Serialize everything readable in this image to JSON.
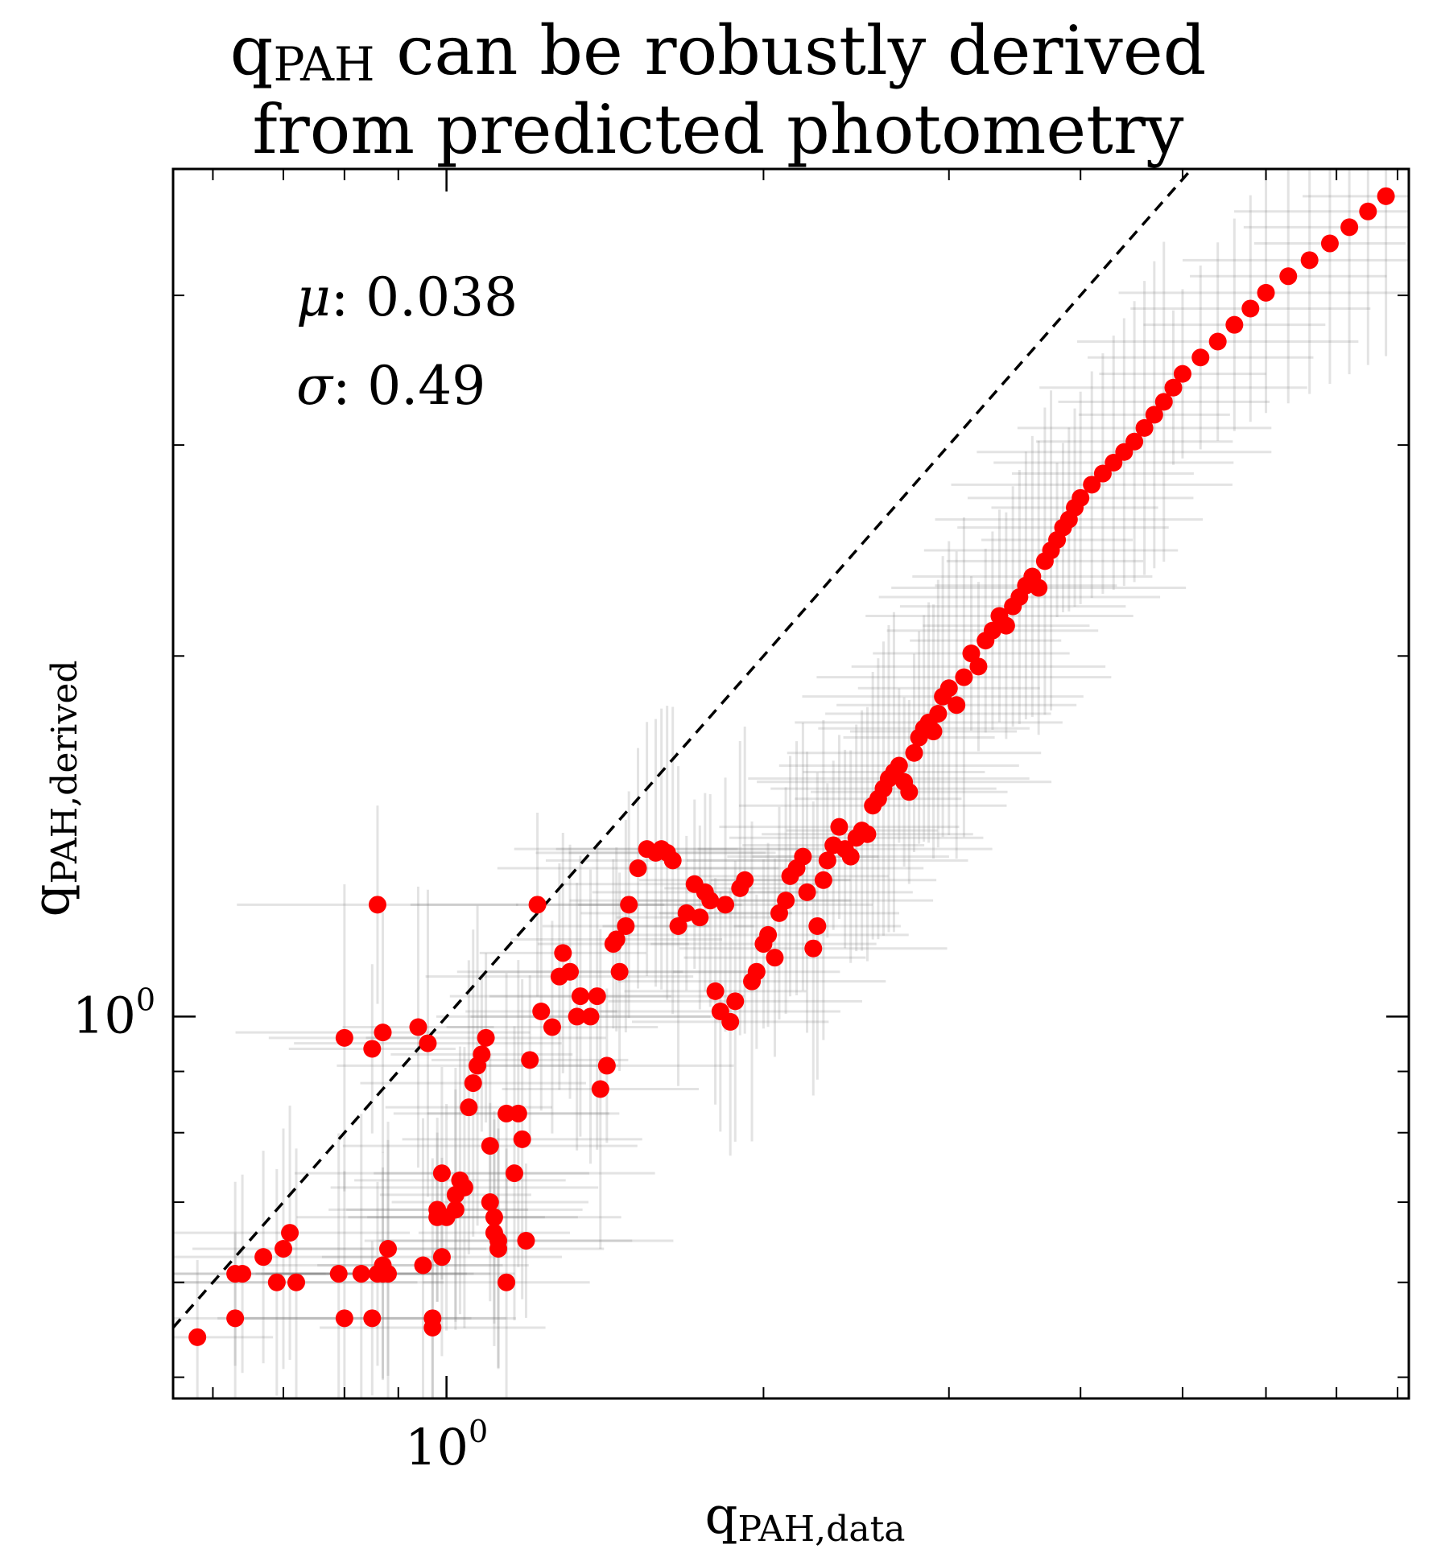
{
  "chart_data": {
    "type": "scatter",
    "title": [
      "q",
      "PAH",
      " can be robustly derived",
      "from predicted photometry"
    ],
    "xlabel": {
      "base": "q",
      "sub": "PAH,data"
    },
    "ylabel": {
      "base": "q",
      "sub": "PAH,derived"
    },
    "xscale": "log",
    "yscale": "log",
    "xlim": [
      0.55,
      8.2
    ],
    "ylim": [
      0.48,
      5.1
    ],
    "grid": false,
    "x_tick_labels": [
      {
        "value": 1.0,
        "base": "10",
        "exp": "0"
      }
    ],
    "y_tick_labels": [
      {
        "value": 1.0,
        "base": "10",
        "exp": "0"
      }
    ],
    "x_major_ticks": [
      1.0
    ],
    "x_minor_ticks": [
      0.6,
      0.7,
      0.8,
      0.9,
      2,
      3,
      4,
      5,
      6,
      7,
      8
    ],
    "y_major_ticks": [
      1.0
    ],
    "y_minor_ticks": [
      0.5,
      0.6,
      0.7,
      0.8,
      0.9,
      2,
      3,
      4
    ],
    "reference_line": {
      "style": "dashed",
      "color": "#000000",
      "slope": 1
    },
    "annotations": [
      {
        "symbol": "μ",
        "text": ": 0.038"
      },
      {
        "symbol": "σ",
        "text": ": 0.49"
      }
    ],
    "colors": {
      "points": "#ff0000",
      "errorbars": "#7f7f7f"
    },
    "series": [
      {
        "points": [
          [
            0.58,
            0.54
          ],
          [
            0.63,
            0.56
          ],
          [
            0.63,
            0.61
          ],
          [
            0.64,
            0.61
          ],
          [
            0.67,
            0.63
          ],
          [
            0.69,
            0.6
          ],
          [
            0.7,
            0.64
          ],
          [
            0.71,
            0.66
          ],
          [
            0.72,
            0.6
          ],
          [
            0.79,
            0.61
          ],
          [
            0.8,
            0.56
          ],
          [
            0.8,
            0.96
          ],
          [
            0.83,
            0.61
          ],
          [
            0.85,
            0.56
          ],
          [
            0.85,
            0.94
          ],
          [
            0.86,
            0.61
          ],
          [
            0.86,
            1.24
          ],
          [
            0.87,
            0.61
          ],
          [
            0.87,
            0.62
          ],
          [
            0.87,
            0.97
          ],
          [
            0.88,
            0.64
          ],
          [
            0.88,
            0.61
          ],
          [
            0.94,
            0.98
          ],
          [
            0.95,
            0.62
          ],
          [
            0.96,
            0.95
          ],
          [
            0.97,
            0.56
          ],
          [
            0.97,
            0.55
          ],
          [
            0.98,
            0.68
          ],
          [
            0.98,
            0.69
          ],
          [
            0.99,
            0.63
          ],
          [
            0.99,
            0.74
          ],
          [
            1.0,
            0.68
          ],
          [
            1.02,
            0.69
          ],
          [
            1.02,
            0.71
          ],
          [
            1.03,
            0.73
          ],
          [
            1.04,
            0.72
          ],
          [
            1.05,
            0.84
          ],
          [
            1.06,
            0.88
          ],
          [
            1.07,
            0.91
          ],
          [
            1.08,
            0.93
          ],
          [
            1.09,
            0.96
          ],
          [
            1.1,
            0.78
          ],
          [
            1.1,
            0.7
          ],
          [
            1.11,
            0.68
          ],
          [
            1.11,
            0.66
          ],
          [
            1.12,
            0.64
          ],
          [
            1.12,
            0.65
          ],
          [
            1.14,
            0.6
          ],
          [
            1.14,
            0.83
          ],
          [
            1.16,
            0.74
          ],
          [
            1.17,
            0.83
          ],
          [
            1.18,
            0.79
          ],
          [
            1.19,
            0.65
          ],
          [
            1.2,
            0.92
          ],
          [
            1.22,
            1.24
          ],
          [
            1.23,
            1.01
          ],
          [
            1.26,
            0.98
          ],
          [
            1.28,
            1.08
          ],
          [
            1.29,
            1.13
          ],
          [
            1.31,
            1.09
          ],
          [
            1.33,
            1.0
          ],
          [
            1.34,
            1.04
          ],
          [
            1.37,
            1.0
          ],
          [
            1.39,
            1.04
          ],
          [
            1.4,
            0.87
          ],
          [
            1.42,
            0.91
          ],
          [
            1.44,
            1.15
          ],
          [
            1.45,
            1.16
          ],
          [
            1.46,
            1.09
          ],
          [
            1.48,
            1.19
          ],
          [
            1.49,
            1.24
          ],
          [
            1.52,
            1.33
          ],
          [
            1.55,
            1.38
          ],
          [
            1.58,
            1.37
          ],
          [
            1.6,
            1.38
          ],
          [
            1.62,
            1.37
          ],
          [
            1.64,
            1.35
          ],
          [
            1.66,
            1.19
          ],
          [
            1.69,
            1.22
          ],
          [
            1.72,
            1.29
          ],
          [
            1.74,
            1.21
          ],
          [
            1.76,
            1.27
          ],
          [
            1.78,
            1.25
          ],
          [
            1.8,
            1.05
          ],
          [
            1.82,
            1.01
          ],
          [
            1.84,
            1.24
          ],
          [
            1.86,
            0.99
          ],
          [
            1.88,
            1.03
          ],
          [
            1.9,
            1.28
          ],
          [
            1.92,
            1.3
          ],
          [
            1.95,
            1.07
          ],
          [
            1.97,
            1.09
          ],
          [
            2.0,
            1.15
          ],
          [
            2.02,
            1.17
          ],
          [
            2.05,
            1.12
          ],
          [
            2.07,
            1.22
          ],
          [
            2.1,
            1.25
          ],
          [
            2.12,
            1.31
          ],
          [
            2.15,
            1.33
          ],
          [
            2.18,
            1.36
          ],
          [
            2.2,
            1.27
          ],
          [
            2.23,
            1.14
          ],
          [
            2.25,
            1.19
          ],
          [
            2.28,
            1.3
          ],
          [
            2.3,
            1.35
          ],
          [
            2.33,
            1.39
          ],
          [
            2.36,
            1.44
          ],
          [
            2.39,
            1.38
          ],
          [
            2.42,
            1.36
          ],
          [
            2.45,
            1.41
          ],
          [
            2.48,
            1.43
          ],
          [
            2.51,
            1.42
          ],
          [
            2.54,
            1.5
          ],
          [
            2.57,
            1.52
          ],
          [
            2.6,
            1.55
          ],
          [
            2.63,
            1.58
          ],
          [
            2.66,
            1.6
          ],
          [
            2.69,
            1.62
          ],
          [
            2.72,
            1.57
          ],
          [
            2.75,
            1.54
          ],
          [
            2.78,
            1.66
          ],
          [
            2.81,
            1.71
          ],
          [
            2.84,
            1.74
          ],
          [
            2.87,
            1.76
          ],
          [
            2.9,
            1.73
          ],
          [
            2.93,
            1.79
          ],
          [
            2.96,
            1.85
          ],
          [
            3.0,
            1.88
          ],
          [
            3.05,
            1.82
          ],
          [
            3.1,
            1.92
          ],
          [
            3.15,
            2.01
          ],
          [
            3.2,
            1.96
          ],
          [
            3.25,
            2.06
          ],
          [
            3.3,
            2.1
          ],
          [
            3.35,
            2.16
          ],
          [
            3.4,
            2.12
          ],
          [
            3.45,
            2.2
          ],
          [
            3.5,
            2.24
          ],
          [
            3.55,
            2.29
          ],
          [
            3.6,
            2.33
          ],
          [
            3.65,
            2.28
          ],
          [
            3.7,
            2.4
          ],
          [
            3.75,
            2.45
          ],
          [
            3.8,
            2.5
          ],
          [
            3.85,
            2.56
          ],
          [
            3.9,
            2.6
          ],
          [
            3.95,
            2.66
          ],
          [
            4.0,
            2.71
          ],
          [
            4.1,
            2.78
          ],
          [
            4.2,
            2.84
          ],
          [
            4.3,
            2.9
          ],
          [
            4.4,
            2.96
          ],
          [
            4.5,
            3.02
          ],
          [
            4.6,
            3.1
          ],
          [
            4.7,
            3.18
          ],
          [
            4.8,
            3.26
          ],
          [
            4.9,
            3.35
          ],
          [
            5.0,
            3.44
          ],
          [
            5.2,
            3.55
          ],
          [
            5.4,
            3.66
          ],
          [
            5.6,
            3.78
          ],
          [
            5.8,
            3.9
          ],
          [
            6.0,
            4.02
          ],
          [
            6.3,
            4.15
          ],
          [
            6.6,
            4.28
          ],
          [
            6.9,
            4.42
          ],
          [
            7.2,
            4.56
          ],
          [
            7.5,
            4.7
          ],
          [
            7.8,
            4.84
          ]
        ]
      }
    ]
  }
}
